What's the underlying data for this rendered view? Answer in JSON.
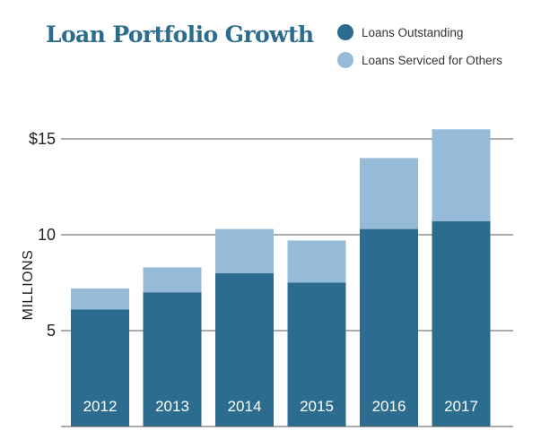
{
  "chart_data": {
    "type": "bar",
    "stacked": true,
    "title": "Loan Portfolio Growth",
    "ylabel": "MILLIONS",
    "xlabel": "",
    "categories": [
      "2012",
      "2013",
      "2014",
      "2015",
      "2016",
      "2017"
    ],
    "series": [
      {
        "name": "Loans Outstanding",
        "color": "#2c6c8f",
        "values": [
          6.1,
          7.0,
          8.0,
          7.5,
          10.3,
          10.7
        ]
      },
      {
        "name": "Loans Serviced for Others",
        "color": "#95bbd9",
        "values": [
          1.1,
          1.3,
          2.3,
          2.2,
          3.7,
          4.8
        ]
      }
    ],
    "ylim": [
      0,
      16
    ],
    "yticks": [
      {
        "value": 5,
        "label": "5"
      },
      {
        "value": 10,
        "label": "10"
      },
      {
        "value": 15,
        "label": "$15"
      }
    ],
    "grid": true,
    "legend": "top-right"
  }
}
